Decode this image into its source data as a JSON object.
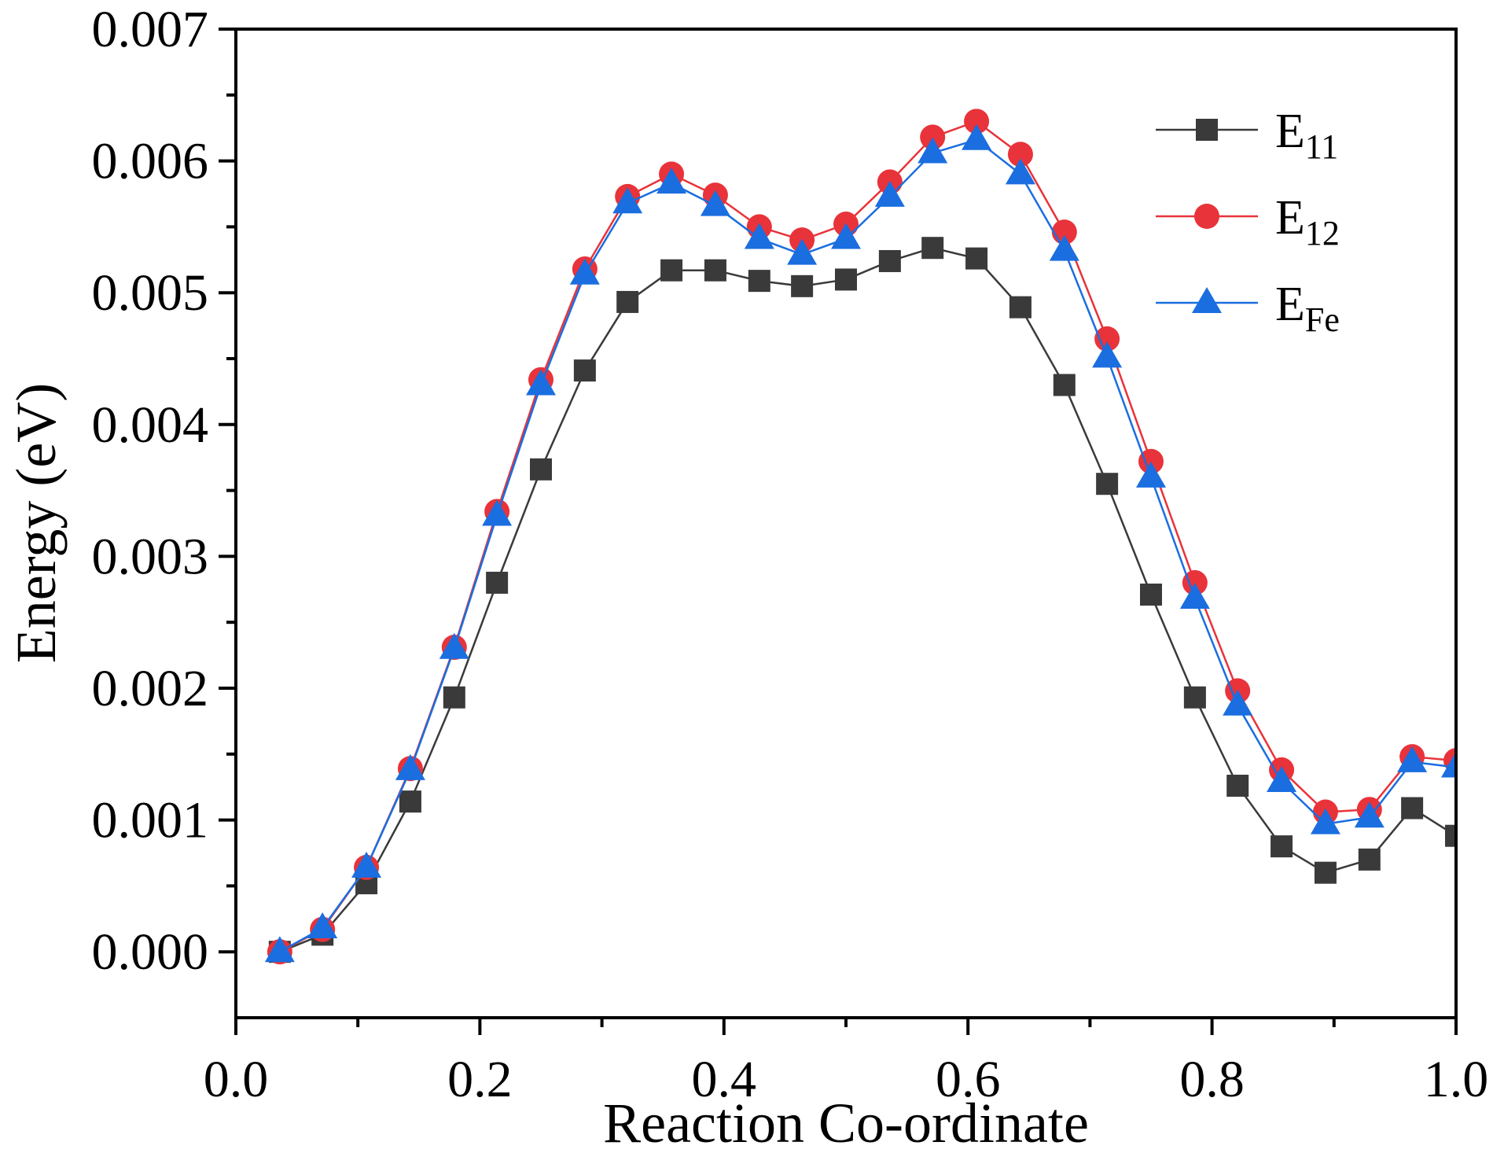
{
  "chart_data": {
    "type": "line",
    "title": "",
    "xlabel": "Reaction Co-ordinate",
    "ylabel": "Energy (eV)",
    "xlim": [
      0.0,
      1.0
    ],
    "ylim": [
      -0.0005,
      0.007
    ],
    "xticks": [
      "0.0",
      "0.2",
      "0.4",
      "0.6",
      "0.8",
      "1.0"
    ],
    "xtick_values": [
      0.0,
      0.2,
      0.4,
      0.6,
      0.8,
      1.0
    ],
    "yticks": [
      "0.000",
      "0.001",
      "0.002",
      "0.003",
      "0.004",
      "0.005",
      "0.006",
      "0.007"
    ],
    "ytick_values": [
      0.0,
      0.001,
      0.002,
      0.003,
      0.004,
      0.005,
      0.006,
      0.007
    ],
    "grid": false,
    "legend_position": "top-right",
    "x": [
      0.036,
      0.071,
      0.107,
      0.143,
      0.179,
      0.214,
      0.25,
      0.286,
      0.321,
      0.357,
      0.393,
      0.429,
      0.464,
      0.5,
      0.536,
      0.571,
      0.607,
      0.643,
      0.679,
      0.714,
      0.75,
      0.786,
      0.821,
      0.857,
      0.893,
      0.929,
      0.964,
      1.0
    ],
    "series": [
      {
        "name": "E",
        "subscript": "11",
        "color": "#3a3a3a",
        "marker": "square",
        "values": [
          0.0,
          0.00013,
          0.00052,
          0.00114,
          0.00193,
          0.0028,
          0.00366,
          0.00441,
          0.00493,
          0.00517,
          0.00517,
          0.00509,
          0.00505,
          0.0051,
          0.00524,
          0.00534,
          0.00526,
          0.00489,
          0.0043,
          0.00355,
          0.00271,
          0.00193,
          0.00126,
          0.0008,
          0.0006,
          0.0007,
          0.00109,
          0.00088
        ]
      },
      {
        "name": "E",
        "subscript": "12",
        "color": "#e8333a",
        "marker": "circle",
        "values": [
          0.0,
          0.00017,
          0.00064,
          0.00139,
          0.00231,
          0.00334,
          0.00434,
          0.00518,
          0.00573,
          0.0059,
          0.00574,
          0.0055,
          0.0054,
          0.00552,
          0.00584,
          0.00618,
          0.0063,
          0.00605,
          0.00546,
          0.00465,
          0.00372,
          0.0028,
          0.00198,
          0.00138,
          0.00106,
          0.00108,
          0.00148,
          0.00145
        ]
      },
      {
        "name": "E",
        "subscript": "Fe",
        "color": "#1a6ee0",
        "marker": "triangle",
        "values": [
          0.0,
          0.00018,
          0.00064,
          0.00138,
          0.0023,
          0.00331,
          0.0043,
          0.00514,
          0.00568,
          0.00583,
          0.00566,
          0.00541,
          0.00529,
          0.00541,
          0.00573,
          0.00606,
          0.00616,
          0.0059,
          0.00532,
          0.00451,
          0.0036,
          0.00268,
          0.00187,
          0.00129,
          0.00097,
          0.00102,
          0.00144,
          0.0014
        ]
      }
    ]
  }
}
